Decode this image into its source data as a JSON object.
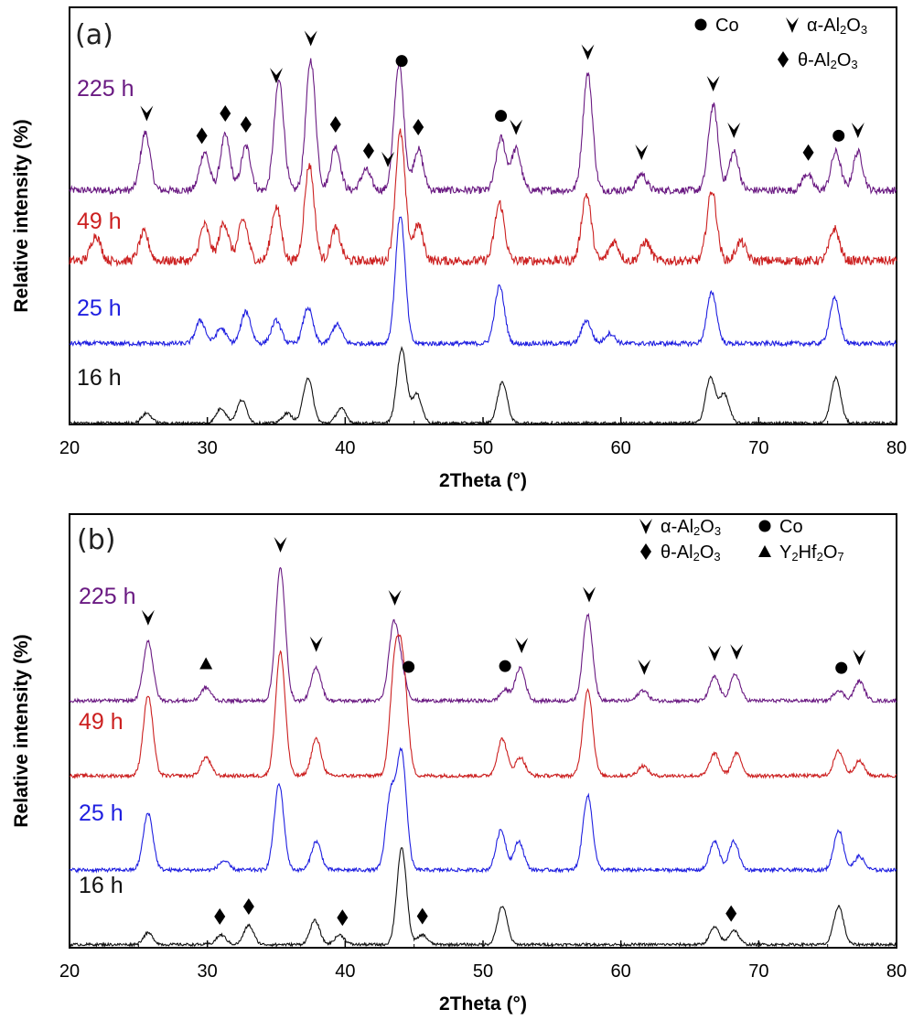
{
  "colors": {
    "225 h": "#6a1a82",
    "49 h": "#cc2020",
    "25 h": "#1f1fe0",
    "16 h": "#111111"
  },
  "symbols": {
    "Co": "circle",
    "α-Al2O3": "chevron-down",
    "θ-Al2O3": "diamond",
    "Y2Hf2O7": "triangle"
  },
  "chart_data": [
    {
      "type": "line",
      "panel_label": "(a)",
      "xlabel": "2Theta (°)",
      "ylabel": "Relative intensity (%)",
      "xlim": [
        20,
        80
      ],
      "x_ticks": [
        20,
        30,
        40,
        50,
        60,
        70,
        80
      ],
      "grid": false,
      "legend": [
        {
          "symbol": "circle",
          "label": "Co"
        },
        {
          "symbol": "chevron-down",
          "label_main": "α-Al",
          "sub1": "2",
          "label_mid": "O",
          "sub2": "3"
        },
        {
          "symbol": "diamond",
          "label_main": "θ-Al",
          "sub1": "2",
          "label_mid": "O",
          "sub2": "3"
        }
      ],
      "series": [
        {
          "name": "225 h",
          "peaks": [
            [
              25.5,
              0.42
            ],
            [
              29.8,
              0.28
            ],
            [
              31.3,
              0.4
            ],
            [
              32.8,
              0.32
            ],
            [
              35.2,
              0.8
            ],
            [
              37.5,
              0.95
            ],
            [
              39.3,
              0.32
            ],
            [
              41.5,
              0.15
            ],
            [
              43.9,
              0.92
            ],
            [
              45.3,
              0.3
            ],
            [
              51.3,
              0.38
            ],
            [
              52.4,
              0.3
            ],
            [
              57.6,
              0.85
            ],
            [
              61.5,
              0.12
            ],
            [
              66.7,
              0.62
            ],
            [
              68.2,
              0.28
            ],
            [
              73.5,
              0.12
            ],
            [
              75.6,
              0.28
            ],
            [
              77.2,
              0.28
            ]
          ]
        },
        {
          "name": "49 h",
          "peaks": [
            [
              21.9,
              0.2
            ],
            [
              25.4,
              0.22
            ],
            [
              29.8,
              0.28
            ],
            [
              31.2,
              0.3
            ],
            [
              32.6,
              0.32
            ],
            [
              35.0,
              0.42
            ],
            [
              37.4,
              0.75
            ],
            [
              39.3,
              0.25
            ],
            [
              44.0,
              1.0
            ],
            [
              45.3,
              0.28
            ],
            [
              51.2,
              0.45
            ],
            [
              57.5,
              0.52
            ],
            [
              59.5,
              0.15
            ],
            [
              61.8,
              0.15
            ],
            [
              66.6,
              0.55
            ],
            [
              68.7,
              0.15
            ],
            [
              75.5,
              0.25
            ]
          ]
        },
        {
          "name": "25 h",
          "peaks": [
            [
              29.5,
              0.18
            ],
            [
              31.0,
              0.12
            ],
            [
              32.8,
              0.25
            ],
            [
              35.0,
              0.18
            ],
            [
              37.3,
              0.28
            ],
            [
              39.4,
              0.15
            ],
            [
              44.0,
              1.0
            ],
            [
              51.2,
              0.45
            ],
            [
              57.5,
              0.18
            ],
            [
              59.2,
              0.08
            ],
            [
              66.6,
              0.4
            ],
            [
              75.5,
              0.35
            ]
          ]
        },
        {
          "name": "16 h",
          "peaks": [
            [
              25.6,
              0.12
            ],
            [
              31.0,
              0.18
            ],
            [
              32.5,
              0.28
            ],
            [
              35.8,
              0.12
            ],
            [
              37.3,
              0.55
            ],
            [
              39.7,
              0.18
            ],
            [
              44.1,
              0.9
            ],
            [
              45.2,
              0.35
            ],
            [
              51.4,
              0.5
            ],
            [
              66.5,
              0.55
            ],
            [
              67.5,
              0.35
            ],
            [
              75.6,
              0.55
            ]
          ]
        }
      ],
      "markers": [
        {
          "symbol": "chevron-down",
          "x": 25.6
        },
        {
          "symbol": "diamond",
          "x": 29.6
        },
        {
          "symbol": "diamond",
          "x": 31.3
        },
        {
          "symbol": "diamond",
          "x": 32.8
        },
        {
          "symbol": "chevron-down",
          "x": 35.0
        },
        {
          "symbol": "chevron-down",
          "x": 37.5
        },
        {
          "symbol": "diamond",
          "x": 39.3
        },
        {
          "symbol": "diamond",
          "x": 41.7
        },
        {
          "symbol": "chevron-down",
          "x": 43.1
        },
        {
          "symbol": "circle",
          "x": 44.1
        },
        {
          "symbol": "diamond",
          "x": 45.3
        },
        {
          "symbol": "circle",
          "x": 51.3
        },
        {
          "symbol": "chevron-down",
          "x": 52.4
        },
        {
          "symbol": "chevron-down",
          "x": 57.6
        },
        {
          "symbol": "chevron-down",
          "x": 61.5
        },
        {
          "symbol": "chevron-down",
          "x": 66.7
        },
        {
          "symbol": "chevron-down",
          "x": 68.2
        },
        {
          "symbol": "diamond",
          "x": 73.6
        },
        {
          "symbol": "circle",
          "x": 75.8
        },
        {
          "symbol": "chevron-down",
          "x": 77.2
        }
      ]
    },
    {
      "type": "line",
      "panel_label": "(b)",
      "xlabel": "2Theta (°)",
      "ylabel": "Relative intensity (%)",
      "xlim": [
        20,
        80
      ],
      "x_ticks": [
        20,
        30,
        40,
        50,
        60,
        70,
        80
      ],
      "grid": false,
      "legend": [
        {
          "symbol": "chevron-down",
          "label_main": "α-Al",
          "sub1": "2",
          "label_mid": "O",
          "sub2": "3"
        },
        {
          "symbol": "circle",
          "label": "Co"
        },
        {
          "symbol": "diamond",
          "label_main": "θ-Al",
          "sub1": "2",
          "label_mid": "O",
          "sub2": "3"
        },
        {
          "symbol": "triangle",
          "label_main": "Y",
          "sub1": "2",
          "label_mid": "Hf",
          "sub2": "2",
          "label_end": "O",
          "sub3": "7"
        }
      ],
      "series": [
        {
          "name": "225 h",
          "peaks": [
            [
              25.7,
              0.45
            ],
            [
              29.9,
              0.1
            ],
            [
              35.3,
              1.0
            ],
            [
              37.9,
              0.25
            ],
            [
              43.5,
              0.55
            ],
            [
              44.1,
              0.2
            ],
            [
              51.6,
              0.08
            ],
            [
              52.7,
              0.25
            ],
            [
              57.6,
              0.65
            ],
            [
              61.6,
              0.08
            ],
            [
              66.8,
              0.18
            ],
            [
              68.3,
              0.2
            ],
            [
              75.8,
              0.08
            ],
            [
              77.3,
              0.15
            ]
          ]
        },
        {
          "name": "49 h",
          "peaks": [
            [
              25.7,
              0.65
            ],
            [
              29.9,
              0.15
            ],
            [
              35.3,
              1.0
            ],
            [
              37.9,
              0.3
            ],
            [
              43.6,
              0.85
            ],
            [
              44.2,
              0.8
            ],
            [
              51.4,
              0.3
            ],
            [
              52.7,
              0.15
            ],
            [
              57.6,
              0.7
            ],
            [
              61.6,
              0.08
            ],
            [
              66.8,
              0.18
            ],
            [
              68.4,
              0.18
            ],
            [
              75.8,
              0.2
            ],
            [
              77.3,
              0.12
            ]
          ]
        },
        {
          "name": "25 h",
          "peaks": [
            [
              25.7,
              0.5
            ],
            [
              31.2,
              0.08
            ],
            [
              35.2,
              0.75
            ],
            [
              37.9,
              0.25
            ],
            [
              43.3,
              0.65
            ],
            [
              44.1,
              1.0
            ],
            [
              51.3,
              0.35
            ],
            [
              52.6,
              0.25
            ],
            [
              57.6,
              0.65
            ],
            [
              66.8,
              0.25
            ],
            [
              68.2,
              0.25
            ],
            [
              75.8,
              0.35
            ],
            [
              77.3,
              0.12
            ]
          ]
        },
        {
          "name": "16 h",
          "peaks": [
            [
              25.7,
              0.12
            ],
            [
              31.0,
              0.1
            ],
            [
              33.0,
              0.2
            ],
            [
              37.8,
              0.25
            ],
            [
              39.6,
              0.1
            ],
            [
              44.1,
              1.0
            ],
            [
              45.6,
              0.1
            ],
            [
              51.4,
              0.4
            ],
            [
              66.8,
              0.18
            ],
            [
              68.2,
              0.15
            ],
            [
              75.8,
              0.4
            ]
          ]
        }
      ],
      "markers": [
        {
          "symbol": "chevron-down",
          "x": 25.7
        },
        {
          "symbol": "triangle",
          "x": 29.9
        },
        {
          "symbol": "chevron-down",
          "x": 35.3
        },
        {
          "symbol": "chevron-down",
          "x": 37.9
        },
        {
          "symbol": "chevron-down",
          "x": 43.6
        },
        {
          "symbol": "circle",
          "x": 44.6
        },
        {
          "symbol": "circle",
          "x": 51.6
        },
        {
          "symbol": "chevron-down",
          "x": 52.8
        },
        {
          "symbol": "chevron-down",
          "x": 57.7
        },
        {
          "symbol": "chevron-down",
          "x": 61.7
        },
        {
          "symbol": "chevron-down",
          "x": 66.8
        },
        {
          "symbol": "chevron-down",
          "x": 68.4
        },
        {
          "symbol": "circle",
          "x": 76.0
        },
        {
          "symbol": "chevron-down",
          "x": 77.3
        },
        {
          "symbol": "diamond",
          "x": 30.9
        },
        {
          "symbol": "diamond",
          "x": 33.0
        },
        {
          "symbol": "diamond",
          "x": 39.8
        },
        {
          "symbol": "diamond",
          "x": 45.6
        },
        {
          "symbol": "diamond",
          "x": 68.0
        }
      ]
    }
  ]
}
